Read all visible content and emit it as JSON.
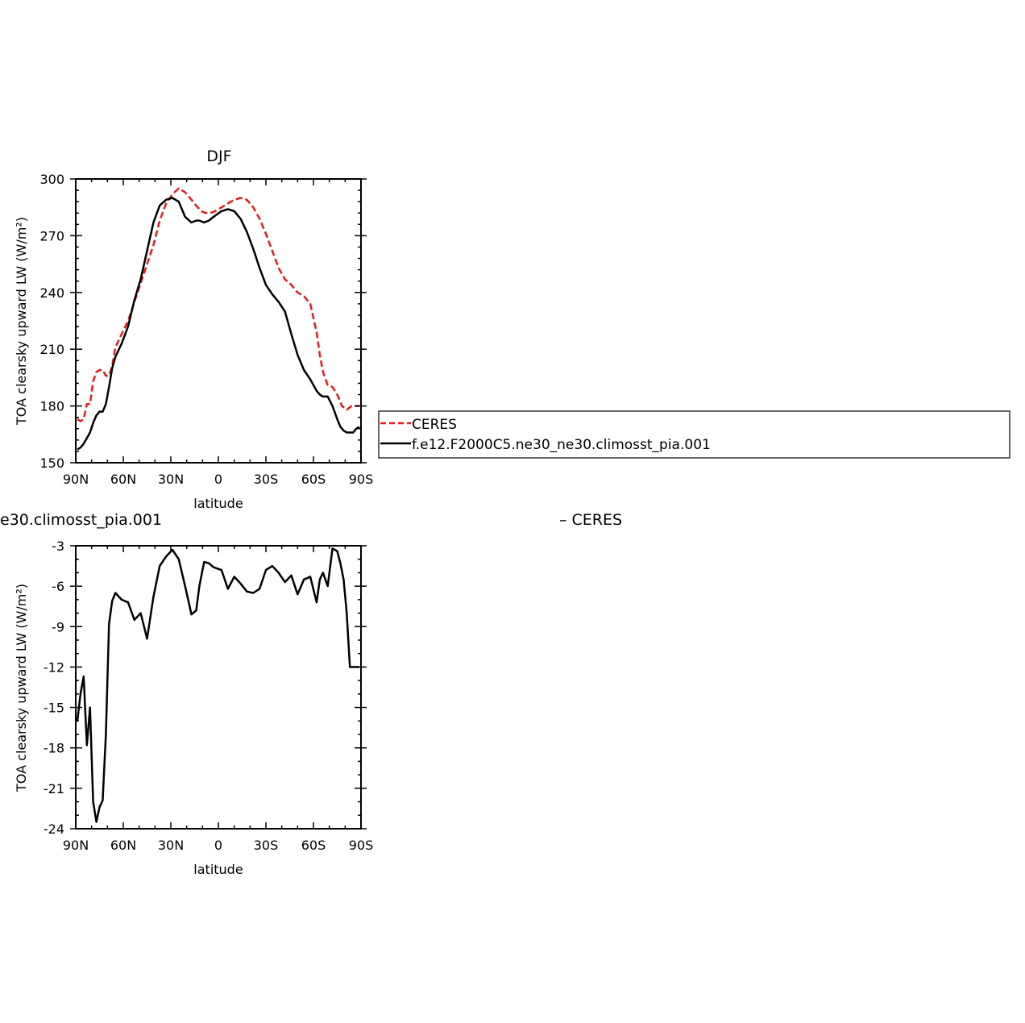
{
  "colors": {
    "ceres": "#e41a1c",
    "model": "#000000",
    "axis": "#000000"
  },
  "legend": {
    "entries": [
      {
        "label": "CERES",
        "style": "dashed",
        "color": "#e41a1c"
      },
      {
        "label": "f.e12.F2000C5.ne30_ne30.climosst_pia.001",
        "style": "solid",
        "color": "#000000"
      }
    ]
  },
  "chart_data": [
    {
      "type": "line",
      "title": "DJF",
      "xlabel": "latitude",
      "ylabel": "TOA clearsky upward LW (W/m²)",
      "xlim": [
        -90,
        90
      ],
      "ylim": [
        150,
        300
      ],
      "xticks": [
        -90,
        -60,
        -30,
        0,
        30,
        60,
        90
      ],
      "xticklabels": [
        "90N",
        "60N",
        "30N",
        "0",
        "30S",
        "60S",
        "90S"
      ],
      "yticks": [
        150,
        180,
        210,
        240,
        270,
        300
      ],
      "yticklabels": [
        "150",
        "180",
        "210",
        "240",
        "270",
        "300"
      ],
      "series": [
        {
          "name": "CERES",
          "style": "dashed",
          "x": [
            -89,
            -87,
            -85,
            -83,
            -81,
            -79,
            -77,
            -75,
            -73,
            -71,
            -69,
            -67,
            -65,
            -61,
            -57,
            -53,
            -49,
            -45,
            -41,
            -37,
            -33,
            -29,
            -25,
            -21,
            -17,
            -13,
            -11,
            -8,
            -5,
            -2,
            2,
            6,
            10,
            14,
            18,
            22,
            26,
            30,
            34,
            38,
            42,
            46,
            50,
            54,
            58,
            62,
            64,
            66,
            69,
            72,
            75,
            78,
            81,
            84,
            87,
            89
          ],
          "y": [
            173,
            172,
            173,
            181,
            181,
            193,
            198,
            199,
            199,
            196,
            196,
            201,
            211,
            218,
            225,
            235,
            245,
            255,
            265,
            278,
            287,
            292,
            295,
            293,
            289,
            285,
            283,
            282,
            282,
            283,
            285,
            287,
            289,
            290,
            289,
            285,
            279,
            271,
            262,
            253,
            247,
            244,
            240,
            238,
            234,
            219,
            207,
            198,
            191,
            190,
            186,
            180,
            178,
            180,
            180,
            180
          ]
        },
        {
          "name": "f.e12.F2000C5.ne30_ne30.climosst_pia.001",
          "style": "solid",
          "x": [
            -89,
            -87,
            -85,
            -83,
            -81,
            -79,
            -77,
            -75,
            -73,
            -71,
            -69,
            -67,
            -65,
            -61,
            -57,
            -53,
            -49,
            -45,
            -41,
            -37,
            -33,
            -29,
            -25,
            -21,
            -17,
            -14,
            -12,
            -9,
            -6,
            -3,
            2,
            6,
            10,
            14,
            18,
            22,
            26,
            30,
            34,
            38,
            42,
            46,
            50,
            54,
            58,
            62,
            64,
            66,
            69,
            72,
            75,
            77,
            79,
            81,
            83,
            85,
            87,
            89
          ],
          "y": [
            157,
            158,
            160,
            163,
            166,
            171,
            175,
            177,
            177,
            181,
            190,
            200,
            206,
            213,
            222,
            236,
            247,
            262,
            277,
            286,
            289,
            290,
            288,
            280,
            277,
            278,
            278,
            277,
            278,
            280,
            283,
            284,
            283,
            279,
            272,
            263,
            253,
            244,
            239,
            235,
            230,
            218,
            207,
            199,
            194,
            188,
            186,
            185,
            185,
            180,
            173,
            169,
            167,
            166,
            166,
            166,
            168,
            169
          ]
        }
      ]
    },
    {
      "type": "line",
      "title_fragment": "e30.climosst_pia.001",
      "title_right_fragment": "– CERES",
      "xlabel": "latitude",
      "ylabel": "TOA clearsky upward LW (W/m²)",
      "xlim": [
        -90,
        90
      ],
      "ylim": [
        -24,
        -3
      ],
      "xticks": [
        -90,
        -60,
        -30,
        0,
        30,
        60,
        90
      ],
      "xticklabels": [
        "90N",
        "60N",
        "30N",
        "0",
        "30S",
        "60S",
        "90S"
      ],
      "yticks": [
        -24,
        -21,
        -18,
        -15,
        -12,
        -9,
        -6,
        -3
      ],
      "yticklabels": [
        "-24",
        "-21",
        "-18",
        "-15",
        "-12",
        "-9",
        "-6",
        "-3"
      ],
      "series": [
        {
          "style": "solid",
          "x": [
            -89,
            -87,
            -85,
            -83,
            -81,
            -79,
            -77,
            -75,
            -73,
            -71,
            -69,
            -67,
            -65,
            -61,
            -57,
            -53,
            -49,
            -45,
            -41,
            -37,
            -33,
            -29,
            -25,
            -21,
            -17,
            -14,
            -12,
            -9,
            -6,
            -3,
            2,
            6,
            10,
            14,
            18,
            22,
            26,
            30,
            34,
            38,
            42,
            46,
            50,
            54,
            58,
            62,
            64,
            66,
            69,
            72,
            75,
            77,
            79,
            81,
            83,
            85,
            87,
            89
          ],
          "y": [
            -16.0,
            -14.0,
            -12.7,
            -17.8,
            -15.0,
            -22.0,
            -23.5,
            -22.4,
            -21.9,
            -17.0,
            -8.8,
            -7.1,
            -6.5,
            -7.0,
            -7.2,
            -8.5,
            -8.0,
            -9.9,
            -6.8,
            -4.5,
            -3.8,
            -3.3,
            -4.0,
            -6.0,
            -8.1,
            -7.8,
            -6.0,
            -4.2,
            -4.3,
            -4.6,
            -4.8,
            -6.2,
            -5.3,
            -5.8,
            -6.4,
            -6.5,
            -6.2,
            -4.8,
            -4.5,
            -5.0,
            -5.7,
            -5.2,
            -6.6,
            -5.5,
            -5.3,
            -7.2,
            -5.5,
            -5.0,
            -6.0,
            -3.2,
            -3.4,
            -4.3,
            -5.5,
            -8.0,
            -12.0,
            -12.0,
            -12.0,
            -12.0
          ]
        }
      ]
    }
  ]
}
